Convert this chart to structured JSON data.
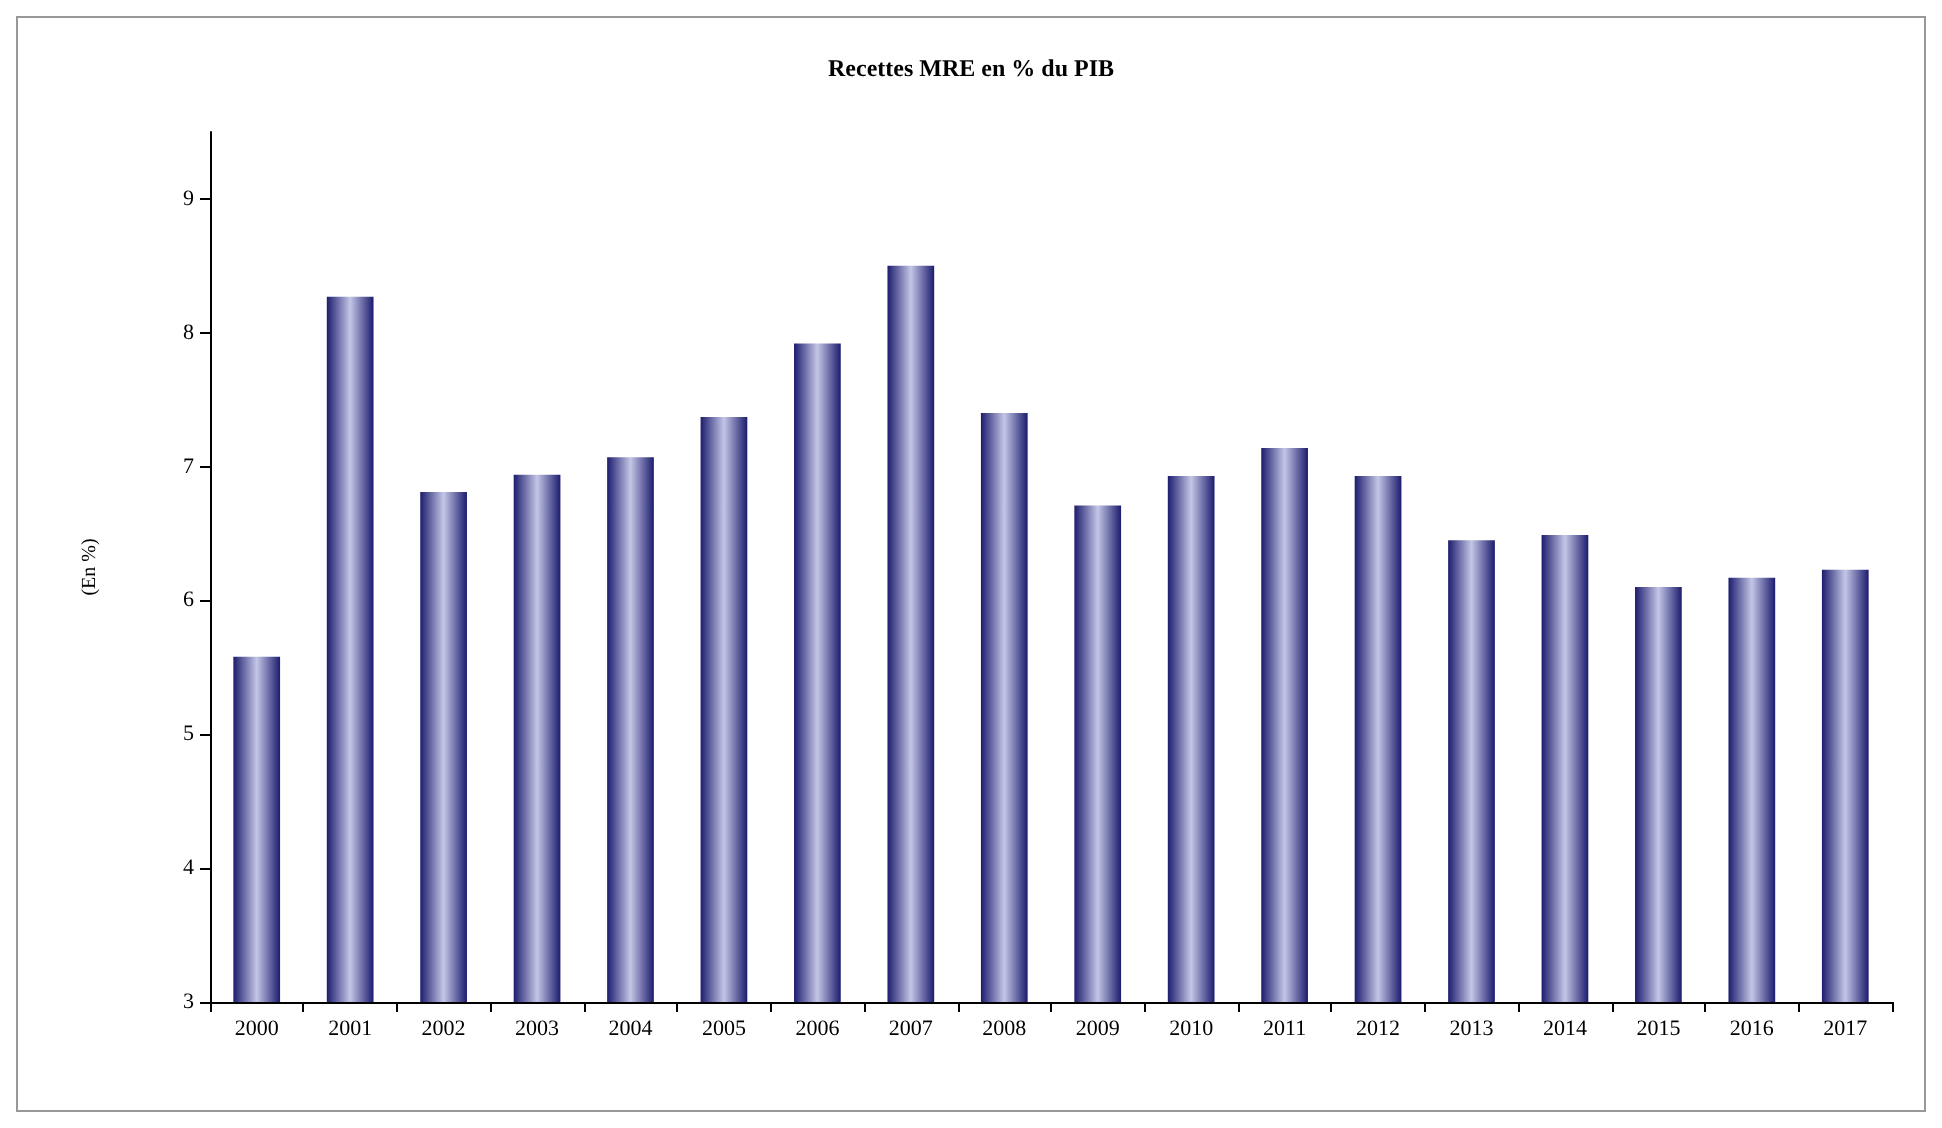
{
  "chart_data": {
    "type": "bar",
    "title": "Recettes MRE en % du PIB",
    "ylabel": "(En %)",
    "categories": [
      "2000",
      "2001",
      "2002",
      "2003",
      "2004",
      "2005",
      "2006",
      "2007",
      "2008",
      "2009",
      "2010",
      "2011",
      "2012",
      "2013",
      "2014",
      "2015",
      "2016",
      "2017"
    ],
    "values": [
      5.58,
      8.27,
      6.81,
      6.94,
      7.07,
      7.37,
      7.92,
      8.5,
      7.4,
      6.71,
      6.93,
      7.14,
      6.93,
      6.45,
      6.49,
      6.1,
      6.17,
      6.23
    ],
    "color": "#1c1c6e",
    "ylim": [
      3,
      9.5
    ],
    "yticks": [
      3,
      4,
      5,
      6,
      7,
      8,
      9
    ],
    "grid": false
  }
}
